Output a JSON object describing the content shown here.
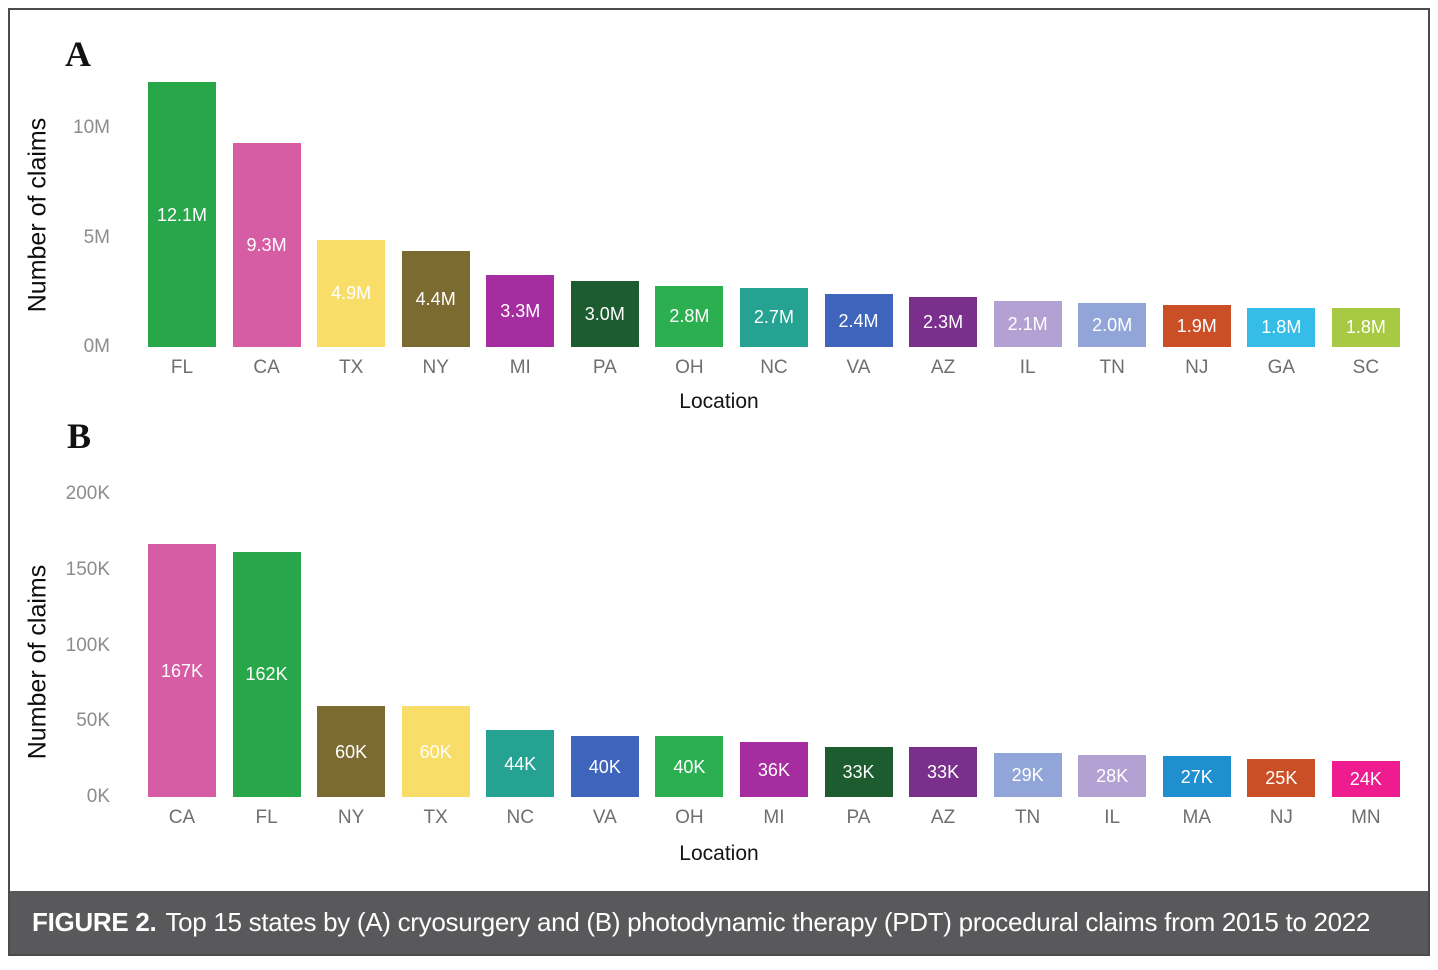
{
  "caption": {
    "label": "FIGURE 2.",
    "text": "Top 15 states by (A) cryosurgery and (B) photodynamic therapy (PDT) procedural claims from 2015 to 2022",
    "bar_color": "#59585a",
    "text_color": "#ffffff"
  },
  "chart_data": [
    {
      "id": "A",
      "type": "bar",
      "panel_label": "A",
      "title": "",
      "xlabel": "Location",
      "ylabel": "Number of claims",
      "unit": "millions of claims",
      "categories": [
        "FL",
        "CA",
        "TX",
        "NY",
        "MI",
        "PA",
        "OH",
        "NC",
        "VA",
        "AZ",
        "IL",
        "TN",
        "NJ",
        "GA",
        "SC"
      ],
      "values": [
        12.1,
        9.3,
        4.9,
        4.4,
        3.3,
        3.0,
        2.8,
        2.7,
        2.4,
        2.3,
        2.1,
        2.0,
        1.9,
        1.8,
        1.8
      ],
      "value_labels": [
        "12.1M",
        "9.3M",
        "4.9M",
        "4.4M",
        "3.3M",
        "3.0M",
        "2.8M",
        "2.7M",
        "2.4M",
        "2.3M",
        "2.1M",
        "2.0M",
        "1.9M",
        "1.8M",
        "1.8M"
      ],
      "bar_colors": [
        "#27a64a",
        "#d65ca4",
        "#f8de69",
        "#7c6b30",
        "#a52da0",
        "#1d5c2f",
        "#2baf50",
        "#25a291",
        "#3e64bc",
        "#7a2f8c",
        "#b4a1d3",
        "#92a5d9",
        "#ca4e26",
        "#35bde8",
        "#a8c943"
      ],
      "yticks": [
        {
          "v": 0,
          "label": "0M"
        },
        {
          "v": 5,
          "label": "5M"
        },
        {
          "v": 10,
          "label": "10M"
        }
      ],
      "ylim": [
        0,
        12.33
      ],
      "grid": false,
      "legend": "none"
    },
    {
      "id": "B",
      "type": "bar",
      "panel_label": "B",
      "title": "",
      "xlabel": "Location",
      "ylabel": "Number of claims",
      "unit": "thousands of claims",
      "categories": [
        "CA",
        "FL",
        "NY",
        "TX",
        "NC",
        "VA",
        "OH",
        "MI",
        "PA",
        "AZ",
        "TN",
        "IL",
        "MA",
        "NJ",
        "MN"
      ],
      "values": [
        167,
        162,
        60,
        60,
        44,
        40,
        40,
        36,
        33,
        33,
        29,
        28,
        27,
        25,
        24
      ],
      "value_labels": [
        "167K",
        "162K",
        "60K",
        "60K",
        "44K",
        "40K",
        "40K",
        "36K",
        "33K",
        "33K",
        "29K",
        "28K",
        "27K",
        "25K",
        "24K"
      ],
      "bar_colors": [
        "#d65ca4",
        "#27a64a",
        "#7c6b30",
        "#f8de69",
        "#25a291",
        "#3e64bc",
        "#2baf50",
        "#a52da0",
        "#1d5c2f",
        "#7a2f8c",
        "#92a5d9",
        "#b4a1d3",
        "#1f8fd0",
        "#ca4e26",
        "#ee1c8e"
      ],
      "yticks": [
        {
          "v": 0,
          "label": "0K"
        },
        {
          "v": 50,
          "label": "50K"
        },
        {
          "v": 100,
          "label": "100K"
        },
        {
          "v": 150,
          "label": "150K"
        },
        {
          "v": 200,
          "label": "200K"
        }
      ],
      "ylim": [
        0,
        200
      ],
      "grid": false,
      "legend": "none"
    }
  ]
}
